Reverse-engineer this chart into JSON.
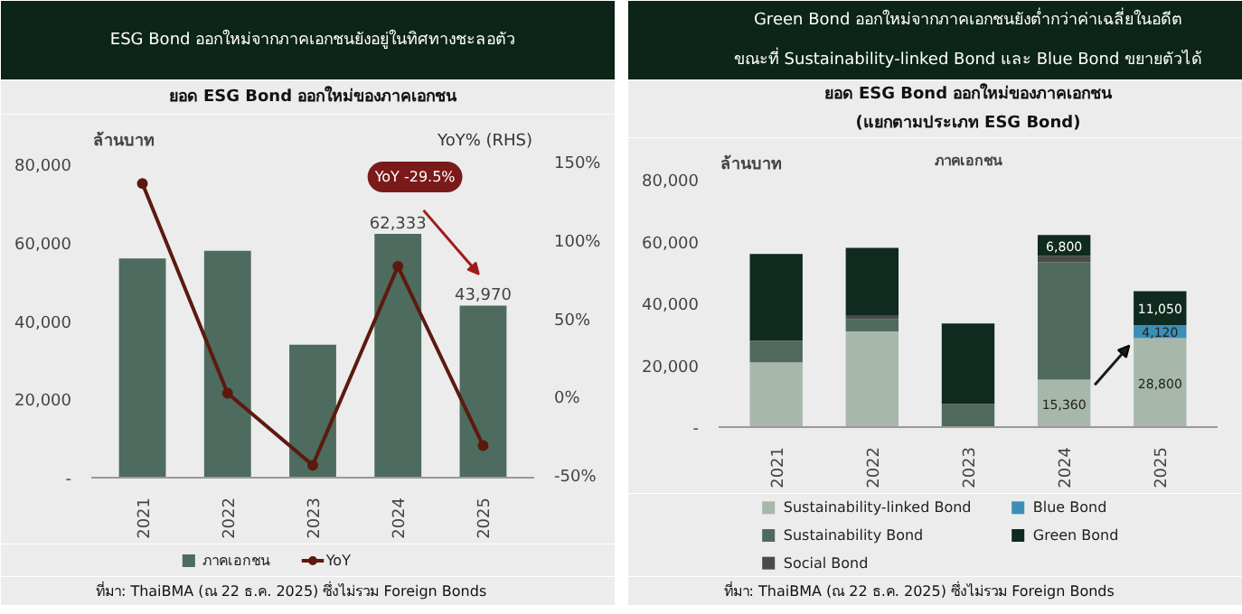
{
  "chart_data": [
    {
      "type": "bar",
      "title": "ESG Bond ออกใหม่จากภาคเอกชนยังอยู่ในทิศทางชะลอตัว",
      "subtitle": "ยอด ESG Bond ออกใหม่ของภาคเอกชน",
      "ylabel": "ล้านบาท",
      "y2label": "YoY% (RHS)",
      "categories": [
        "2021",
        "2022",
        "2023",
        "2024",
        "2025"
      ],
      "series": [
        {
          "name": "ภาคเอกชน",
          "color": "#4d6b5e",
          "values": [
            56000,
            58000,
            34000,
            62333,
            43970
          ],
          "value_labels": [
            null,
            null,
            null,
            "62,333",
            "43,970"
          ]
        },
        {
          "name": "YoY",
          "type": "line",
          "axis": "y2",
          "color": "#5c1a0e",
          "marker": "circle",
          "values": [
            138,
            4,
            -42,
            85,
            -29.5
          ]
        }
      ],
      "ylim": [
        0,
        90000
      ],
      "yticks": [
        {
          "value": 0,
          "label": "-"
        },
        {
          "value": 20000,
          "label": "20,000"
        },
        {
          "value": 40000,
          "label": "40,000"
        },
        {
          "value": 60000,
          "label": "60,000"
        },
        {
          "value": 80000,
          "label": "80,000"
        }
      ],
      "y2lim": [
        -50,
        175
      ],
      "y2ticks": [
        {
          "value": -50,
          "label": "-50%"
        },
        {
          "value": 0,
          "label": "0%"
        },
        {
          "value": 50,
          "label": "50%"
        },
        {
          "value": 100,
          "label": "100%"
        },
        {
          "value": 150,
          "label": "150%"
        }
      ],
      "legend": "bottom",
      "annotations": [
        "YoY -29.5%",
        "ที่มา: ThaiBMA (ณ 22 ธ.ค. 2025) ซึ่งไม่รวม Foreign Bonds"
      ]
    },
    {
      "type": "bar",
      "stacked": true,
      "title": "Green Bond ออกใหม่จากภาคเอกชนยังต่ำกว่าค่าเฉลี่ยในอดีต\nขณะที่ Sustainability-linked Bond และ Blue Bond ขยายตัวได้",
      "subtitle": "ยอด ESG Bond ออกใหม่ของภาคเอกชน\n(แยกตามประเภท ESG Bond)",
      "ylabel": "ล้านบาท",
      "categories": [
        "2021",
        "2022",
        "2023",
        "2024",
        "2025"
      ],
      "series": [
        {
          "name": "Sustainability-linked Bond",
          "color": "#a7b8ab",
          "values": [
            21000,
            31000,
            0,
            15360,
            28800
          ],
          "value_labels": [
            null,
            null,
            null,
            "15,360",
            "28,800"
          ]
        },
        {
          "name": "Sustainability Bond",
          "color": "#4f6a5c",
          "values": [
            7000,
            4000,
            7500,
            38000,
            0
          ]
        },
        {
          "name": "Social Bond",
          "color": "#4a4a4a",
          "values": [
            0,
            1000,
            0,
            2000,
            0
          ]
        },
        {
          "name": "Blue Bond",
          "color": "#3b8fb5",
          "values": [
            0,
            0,
            0,
            0,
            4120
          ],
          "value_labels": [
            null,
            null,
            null,
            null,
            "4,120"
          ]
        },
        {
          "name": "Green Bond",
          "color": "#0f2a1e",
          "values": [
            28000,
            22000,
            26000,
            6800,
            11050
          ],
          "value_labels": [
            null,
            null,
            null,
            "6,800",
            "11,050"
          ]
        }
      ],
      "ylim": [
        0,
        90000
      ],
      "yticks": [
        {
          "value": 0,
          "label": "-"
        },
        {
          "value": 20000,
          "label": "20,000"
        },
        {
          "value": 40000,
          "label": "40,000"
        },
        {
          "value": 60000,
          "label": "60,000"
        },
        {
          "value": 80000,
          "label": "80,000"
        }
      ],
      "legend": "bottom",
      "annotations": [
        "ภาคเอกชน",
        "ที่มา: ThaiBMA (ณ 22 ธ.ค. 2025) ซึ่งไม่รวม Foreign Bonds"
      ]
    }
  ]
}
